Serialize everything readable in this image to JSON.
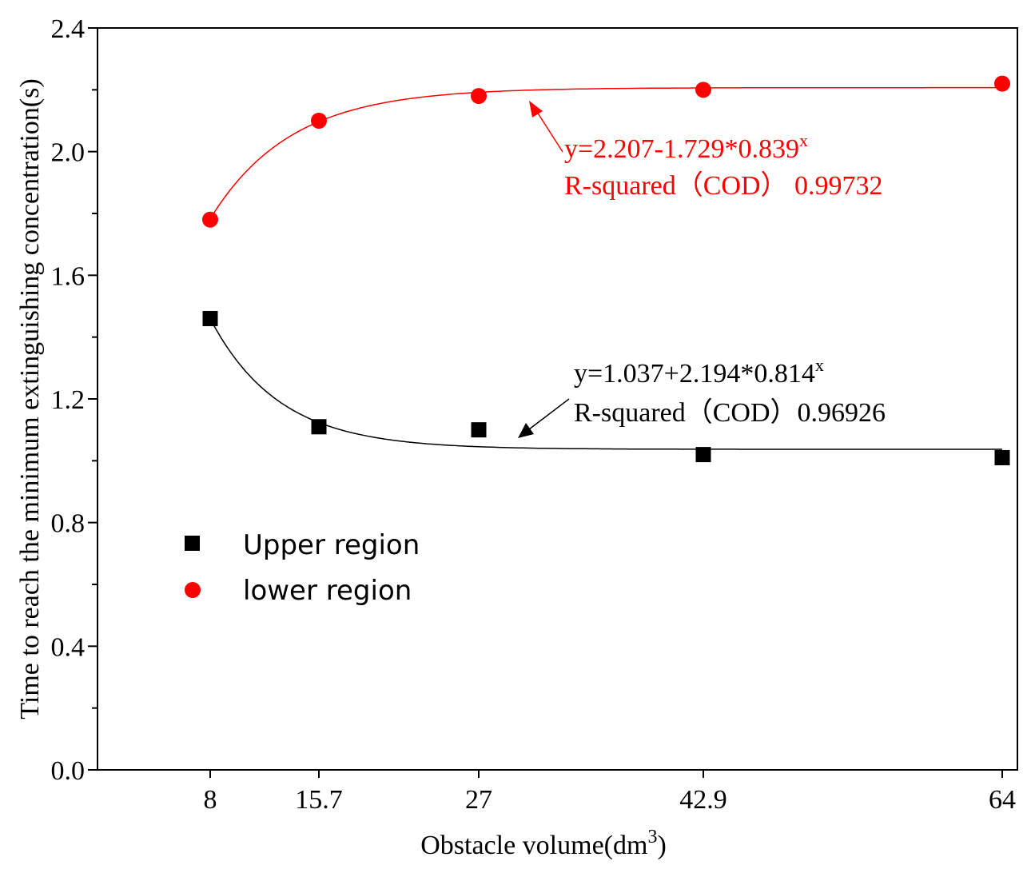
{
  "chart_data": {
    "type": "scatter",
    "xlabel_main": "Obstacle volume(dm",
    "xlabel_sup": "3",
    "xlabel_end": ")",
    "ylabel": "Time to reach the minimum extinguishing concentration(s)",
    "ylim": [
      0,
      2.4
    ],
    "yticks": [
      "0.0",
      "0.4",
      "0.8",
      "1.2",
      "1.6",
      "2.0",
      "2.4"
    ],
    "categories": [
      "8",
      "15.7",
      "27",
      "42.9",
      "64"
    ],
    "x": [
      8,
      15.7,
      27,
      42.9,
      64
    ],
    "series": [
      {
        "name": "Upper region",
        "marker": "square",
        "color": "#000000",
        "values": [
          1.46,
          1.11,
          1.1,
          1.02,
          1.01
        ],
        "fit": {
          "a": 1.037,
          "b": 2.194,
          "c": 0.814,
          "sign": 1
        },
        "equation_main": "y=1.037+2.194*0.814",
        "equation_sup": "x",
        "r_squared": "R-squared（COD）0.96926"
      },
      {
        "name": "lower region",
        "marker": "circle",
        "color": "#ff0000",
        "values": [
          1.78,
          2.1,
          2.18,
          2.2,
          2.22
        ],
        "fit": {
          "a": 2.207,
          "b": 1.729,
          "c": 0.839,
          "sign": -1
        },
        "equation_main": "y=2.207-1.729*0.839",
        "equation_sup": "x",
        "r_squared": "R-squared（COD） 0.99732"
      }
    ],
    "legend": [
      "Upper region",
      "lower region"
    ],
    "legend_position": "center-left"
  }
}
